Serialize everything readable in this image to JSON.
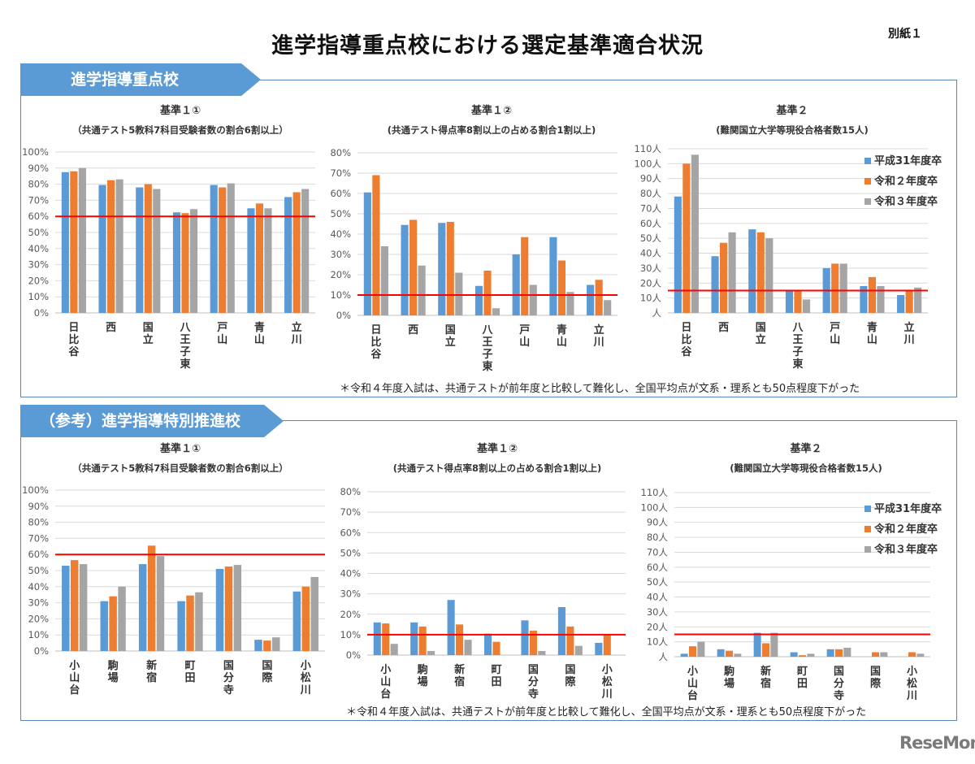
{
  "page": {
    "title": "進学指導重点校における選定基準適合状況",
    "annex_label": "別紙１",
    "logo": "ReseMom"
  },
  "sections": [
    {
      "header": "進学指導重点校",
      "note": "＊令和４年度入試は、共通テストが前年度と比較して難化し、全国平均点が文系・理系とも50点程度下がった"
    },
    {
      "header": "（参考）進学指導特別推進校",
      "note": "＊令和４年度入試は、共通テストが前年度と比較して難化し、全国平均点が文系・理系とも50点程度下がった"
    }
  ],
  "colors": {
    "series": [
      "#5b9bd5",
      "#ed7d31",
      "#a5a5a5"
    ],
    "threshold": "#ff0000",
    "accent": "#5b9bd5",
    "grid": "#d9d9d9"
  },
  "chart_data": [
    {
      "id": "top-c1",
      "type": "bar",
      "title": "基準１①",
      "subtitle": "（共通テスト5教科7科目受験者数の割合6割以上）",
      "categories": [
        "日比谷",
        "西",
        "国立",
        "八王子東",
        "戸山",
        "青山",
        "立川"
      ],
      "series": [
        {
          "name": "平成31年度卒",
          "values": [
            87.5,
            79.5,
            78,
            62.5,
            79.5,
            65,
            72
          ]
        },
        {
          "name": "令和２年度卒",
          "values": [
            88,
            82.5,
            80,
            62,
            78,
            68,
            75
          ]
        },
        {
          "name": "令和３年度卒",
          "values": [
            90,
            83,
            77,
            64.5,
            80.5,
            65,
            77
          ]
        }
      ],
      "ylim": [
        0,
        100
      ],
      "ystep": 10,
      "yunit": "%",
      "threshold": 60,
      "grid": true,
      "legend": null
    },
    {
      "id": "top-c2",
      "type": "bar",
      "title": "基準１②",
      "subtitle": "(共通テスト得点率8割以上の占める割合1割以上)",
      "categories": [
        "日比谷",
        "西",
        "国立",
        "八王子東",
        "戸山",
        "青山",
        "立川"
      ],
      "series": [
        {
          "name": "平成31年度卒",
          "values": [
            60.5,
            44.5,
            45.5,
            14.5,
            30,
            38.5,
            15
          ]
        },
        {
          "name": "令和２年度卒",
          "values": [
            69,
            47,
            46,
            22,
            38.5,
            27,
            17.5
          ]
        },
        {
          "name": "令和３年度卒",
          "values": [
            34,
            24.5,
            21,
            3.5,
            15,
            11.5,
            7.5
          ]
        }
      ],
      "ylim": [
        0,
        80
      ],
      "ystep": 10,
      "yunit": "%",
      "threshold": 10,
      "grid": true,
      "legend": null
    },
    {
      "id": "top-c3",
      "type": "bar",
      "title": "基準２",
      "subtitle": "(難関国立大学等現役合格者数15人)",
      "categories": [
        "日比谷",
        "西",
        "国立",
        "八王子東",
        "戸山",
        "青山",
        "立川"
      ],
      "series": [
        {
          "name": "平成31年度卒",
          "values": [
            78,
            38,
            56,
            15,
            30,
            18,
            12
          ]
        },
        {
          "name": "令和２年度卒",
          "values": [
            100,
            47,
            54,
            15,
            33,
            24,
            15
          ]
        },
        {
          "name": "令和３年度卒",
          "values": [
            106,
            54,
            50,
            9,
            33,
            18,
            17
          ]
        }
      ],
      "ylim": [
        0,
        110
      ],
      "ystep": 10,
      "yunit": "人",
      "threshold": 15,
      "grid": true,
      "legend": "top-right"
    },
    {
      "id": "bot-c1",
      "type": "bar",
      "title": "基準１①",
      "subtitle": "（共通テスト5教科7科目受験者数の割合6割以上）",
      "categories": [
        "小山台",
        "駒場",
        "新宿",
        "町田",
        "国分寺",
        "国際",
        "小松川"
      ],
      "series": [
        {
          "name": "平成31年度卒",
          "values": [
            53,
            31,
            54,
            31,
            51,
            7,
            37
          ]
        },
        {
          "name": "令和２年度卒",
          "values": [
            56.5,
            34,
            65.5,
            34.5,
            52.5,
            6.5,
            40
          ]
        },
        {
          "name": "令和３年度卒",
          "values": [
            54,
            40,
            59,
            36.5,
            53.5,
            8.5,
            46
          ]
        }
      ],
      "ylim": [
        0,
        100
      ],
      "ystep": 10,
      "yunit": "%",
      "threshold": 60,
      "grid": true,
      "legend": null
    },
    {
      "id": "bot-c2",
      "type": "bar",
      "title": "基準１②",
      "subtitle": "(共通テスト得点率8割以上の占める割合1割以上)",
      "categories": [
        "小山台",
        "駒場",
        "新宿",
        "町田",
        "国分寺",
        "国際",
        "小松川"
      ],
      "series": [
        {
          "name": "平成31年度卒",
          "values": [
            16,
            16,
            27,
            10.5,
            17,
            23.5,
            6
          ]
        },
        {
          "name": "令和２年度卒",
          "values": [
            15.5,
            14,
            15,
            6.5,
            12,
            14,
            10
          ]
        },
        {
          "name": "令和３年度卒",
          "values": [
            5.5,
            2,
            7.5,
            0,
            2,
            4.5,
            0
          ]
        }
      ],
      "ylim": [
        0,
        80
      ],
      "ystep": 10,
      "yunit": "%",
      "threshold": 10,
      "grid": true,
      "legend": null
    },
    {
      "id": "bot-c3",
      "type": "bar",
      "title": "基準２",
      "subtitle": "(難関国立大学等現役合格者数15人)",
      "categories": [
        "小山台",
        "駒場",
        "新宿",
        "町田",
        "国分寺",
        "国際",
        "小松川"
      ],
      "series": [
        {
          "name": "平成31年度卒",
          "values": [
            2,
            5,
            16,
            3,
            5,
            0,
            0
          ]
        },
        {
          "name": "令和２年度卒",
          "values": [
            7,
            4,
            9,
            1,
            5,
            3,
            3
          ]
        },
        {
          "name": "令和３年度卒",
          "values": [
            10,
            2,
            16,
            2,
            6,
            3,
            2
          ]
        }
      ],
      "ylim": [
        0,
        110
      ],
      "ystep": 10,
      "yunit": "人",
      "threshold": 15,
      "grid": true,
      "legend": "top-right"
    }
  ]
}
